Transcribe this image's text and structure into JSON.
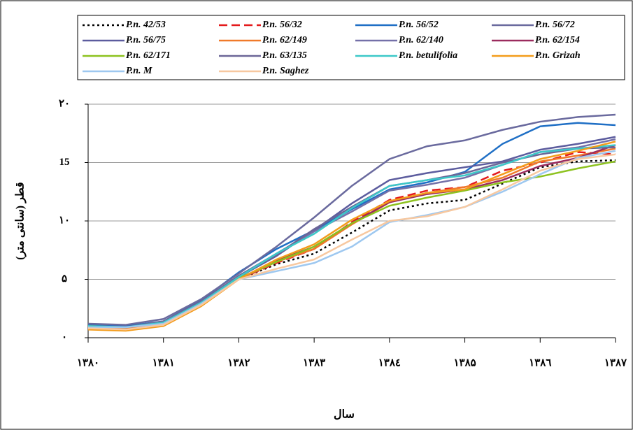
{
  "chart_data": {
    "type": "line",
    "y_label": "قطر (سانتی متر)",
    "x_label": "سال",
    "x": [
      1380,
      1380.5,
      1381,
      1381.5,
      1382,
      1382.5,
      1383,
      1383.5,
      1384,
      1384.5,
      1385,
      1385.5,
      1386,
      1386.5,
      1387
    ],
    "xlim": [
      1380,
      1387
    ],
    "xticks": [
      {
        "value": 1380,
        "label": "۱۳۸۰"
      },
      {
        "value": 1381,
        "label": "۱۳۸۱"
      },
      {
        "value": 1382,
        "label": "۱۳۸۲"
      },
      {
        "value": 1383,
        "label": "۱۳۸۳"
      },
      {
        "value": 1384,
        "label": "۱۳۸٤"
      },
      {
        "value": 1385,
        "label": "۱۳۸۵"
      },
      {
        "value": 1386,
        "label": "۱۳۸٦"
      },
      {
        "value": 1387,
        "label": "۱۳۸۷"
      }
    ],
    "ylim": [
      0,
      20
    ],
    "yticks": [
      {
        "value": 0,
        "label": "۰"
      },
      {
        "value": 5,
        "label": "۵"
      },
      {
        "value": 10,
        "label": "۱۰"
      },
      15,
      {
        "value": 20,
        "label": "۲۰"
      }
    ],
    "grid": true,
    "series": [
      {
        "name": "P.n. 42/53",
        "color": "#000000",
        "style": "dotted",
        "values": [
          1,
          0.9,
          1.2,
          2.8,
          5,
          6.3,
          7.2,
          9,
          10.9,
          11.5,
          11.8,
          13.2,
          14.6,
          15.1,
          15.2
        ]
      },
      {
        "name": "P.n. 56/32",
        "color": "#e41a1c",
        "style": "dashed",
        "values": [
          1,
          0.9,
          1.3,
          2.9,
          5,
          6.4,
          7.6,
          9.9,
          11.8,
          12.6,
          12.9,
          14.3,
          15,
          15.9,
          15.7
        ]
      },
      {
        "name": "P.n. 56/52",
        "color": "#1f6fc5",
        "style": "solid",
        "values": [
          1.1,
          1,
          1.4,
          3.2,
          5.6,
          7.6,
          9.2,
          11,
          12.7,
          13.3,
          14.2,
          16.6,
          18.1,
          18.4,
          18.2
        ]
      },
      {
        "name": "P.n. 56/72",
        "color": "#6a6a9e",
        "style": "solid",
        "values": [
          1.2,
          1.1,
          1.6,
          3.3,
          5.5,
          7.8,
          10.3,
          13,
          15.3,
          16.4,
          16.9,
          17.8,
          18.5,
          18.9,
          19.1
        ]
      },
      {
        "name": "P.n. 56/75",
        "color": "#5c5c9e",
        "style": "solid",
        "values": [
          1,
          0.9,
          1.3,
          3,
          5.2,
          7,
          9.2,
          11.5,
          13.5,
          14.1,
          14.6,
          15.1,
          16.1,
          16.6,
          17.2
        ]
      },
      {
        "name": "P.n. 62/149",
        "color": "#f07a2a",
        "style": "solid",
        "values": [
          0.9,
          0.8,
          1.2,
          2.9,
          5,
          6.5,
          7.6,
          9.7,
          11.6,
          12.4,
          12.9,
          13.7,
          15.1,
          15.6,
          16.2
        ]
      },
      {
        "name": "P.n. 62/140",
        "color": "#7470a8",
        "style": "solid",
        "values": [
          1,
          0.9,
          1.4,
          3.1,
          5.3,
          7.2,
          9.1,
          10.8,
          12.6,
          13.1,
          13.7,
          14.8,
          15.9,
          16.3,
          17
        ]
      },
      {
        "name": "P.n. 62/154",
        "color": "#9b2c5e",
        "style": "solid",
        "values": [
          1,
          0.9,
          1.3,
          2.9,
          5,
          6.6,
          7.8,
          9.8,
          11.6,
          12.3,
          12.7,
          13.5,
          14.7,
          15.4,
          16.5
        ]
      },
      {
        "name": "P.n. 62/171",
        "color": "#8dc21f",
        "style": "solid",
        "values": [
          1,
          0.9,
          1.3,
          3,
          5.1,
          6.5,
          7.8,
          9.8,
          11.3,
          12,
          12.6,
          13.3,
          13.8,
          14.5,
          15.1
        ]
      },
      {
        "name": "P.n. 63/135",
        "color": "#6b6697",
        "style": "solid",
        "values": [
          1,
          0.9,
          1.4,
          3.1,
          5.3,
          7.1,
          9.3,
          11.2,
          13,
          13.5,
          14.1,
          15,
          15.7,
          16.2,
          16.3
        ]
      },
      {
        "name": "P.n. betulifolia",
        "color": "#3cc8c8",
        "style": "solid",
        "values": [
          1,
          0.9,
          1.3,
          3,
          5.2,
          7.2,
          8.9,
          11.1,
          13,
          13.5,
          13.9,
          14.8,
          15.9,
          16.2,
          16.5
        ]
      },
      {
        "name": "P.n. Grizah",
        "color": "#f39c1a",
        "style": "solid",
        "values": [
          0.7,
          0.6,
          1,
          2.7,
          5,
          6.7,
          8,
          10.1,
          11.7,
          12.4,
          12.7,
          14,
          15.3,
          16,
          16.8
        ]
      },
      {
        "name": "P.n. M",
        "color": "#9ec8f0",
        "style": "solid",
        "values": [
          0.9,
          0.9,
          1.2,
          2.9,
          5,
          5.7,
          6.4,
          7.8,
          9.9,
          10.5,
          11.2,
          12.5,
          14,
          15.4,
          16
        ]
      },
      {
        "name": "P.n. Saghez",
        "color": "#f7c8a0",
        "style": "solid",
        "values": [
          0.8,
          0.7,
          1.1,
          2.8,
          5,
          5.9,
          6.7,
          8.4,
          10,
          10.4,
          11.2,
          12.7,
          14.3,
          15.3,
          15.7
        ]
      }
    ]
  }
}
